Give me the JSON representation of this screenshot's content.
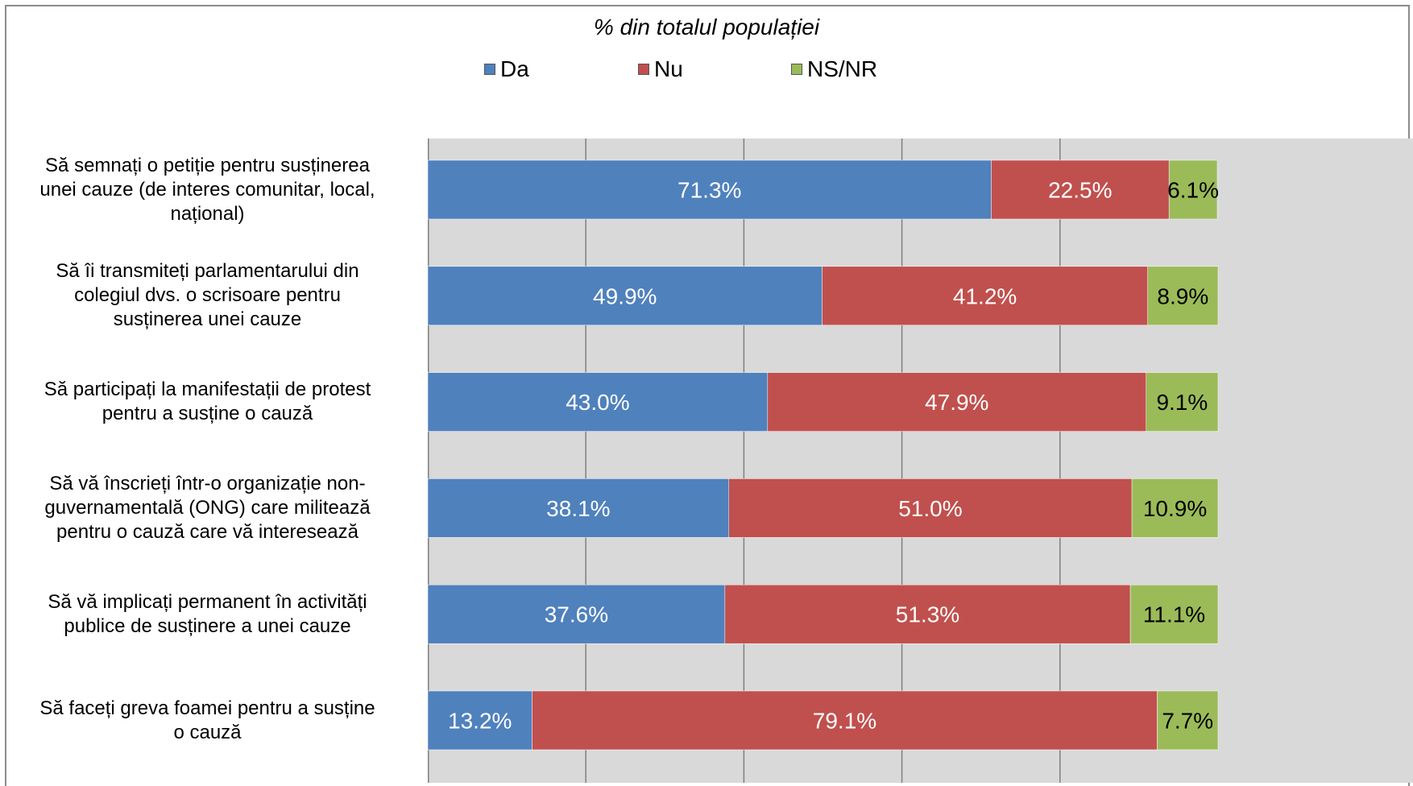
{
  "chart_data": {
    "type": "bar",
    "orientation": "horizontal",
    "stacked": true,
    "title": "% din totalul populației",
    "categories": [
      "Să semnați o petiție pentru susținerea unei cauze (de interes comunitar, local, național)",
      "Să îi transmiteți parlamentarului din colegiul dvs. o scrisoare pentru susținerea unei cauze",
      "Să participați la manifestații de protest pentru a susține o cauză",
      "Să vă înscrieți într-o organizație non-guvernamentală (ONG) care militează pentru o cauză care vă interesează",
      "Să vă implicați permanent în activități publice de susținere a unei cauze",
      "Să faceți greva foamei pentru a susține o cauză"
    ],
    "category_lines": [
      [
        "Să semnați o petiție pentru susținerea",
        "unei cauze (de interes comunitar, local,",
        "național)"
      ],
      [
        "Să îi transmiteți parlamentarului din",
        "colegiul dvs. o scrisoare pentru",
        "susținerea unei cauze"
      ],
      [
        "Să participați la manifestații de protest",
        "pentru a susține o cauză"
      ],
      [
        "Să vă înscrieți într-o organizație non-",
        "guvernamentală (ONG) care militează",
        "pentru o cauză care vă interesează"
      ],
      [
        "Să vă implicați permanent în activități",
        "publice de susținere a unei cauze"
      ],
      [
        "Să faceți greva foamei pentru a susține",
        "o cauză"
      ]
    ],
    "series": [
      {
        "name": "Da",
        "color": "#4f81bd",
        "label_color": "#ffffff",
        "values": [
          71.3,
          49.9,
          43.0,
          38.1,
          37.6,
          13.2
        ],
        "labels": [
          "71.3%",
          "49.9%",
          "43.0%",
          "38.1%",
          "37.6%",
          "13.2%"
        ]
      },
      {
        "name": "Nu",
        "color": "#c0504d",
        "label_color": "#ffffff",
        "values": [
          22.5,
          41.2,
          47.9,
          51.0,
          51.3,
          79.1
        ],
        "labels": [
          "22.5%",
          "41.2%",
          "47.9%",
          "51.0%",
          "51.3%",
          "79.1%"
        ]
      },
      {
        "name": "NS/NR",
        "color": "#9bbb59",
        "label_color": "#000000",
        "values": [
          6.1,
          8.9,
          9.1,
          10.9,
          11.1,
          7.7
        ],
        "labels": [
          "6.1%",
          "8.9%",
          "9.1%",
          "10.9%",
          "11.1%",
          "7.7%"
        ]
      }
    ],
    "xlim": [
      0,
      100
    ],
    "grid": true,
    "legend_position": "top"
  }
}
